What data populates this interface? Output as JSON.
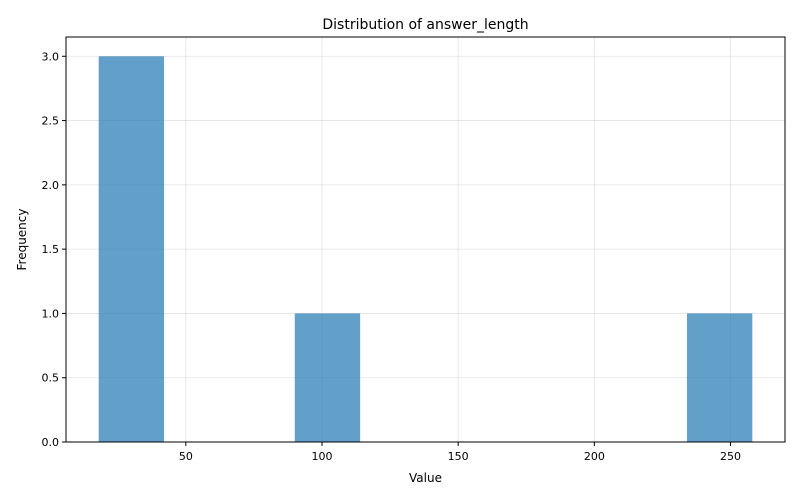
{
  "chart_data": {
    "type": "bar",
    "title": "Distribution of answer_length",
    "xlabel": "Value",
    "ylabel": "Frequency",
    "grid": true,
    "bar_color": "#1f77b4",
    "bar_opacity": 0.7,
    "xlim": [
      6,
      270
    ],
    "ylim": [
      0,
      3.15
    ],
    "xticks": [
      50,
      100,
      150,
      200,
      250
    ],
    "xtick_labels": [
      "50",
      "100",
      "150",
      "200",
      "250"
    ],
    "yticks": [
      0,
      0.5,
      1.0,
      1.5,
      2.0,
      2.5,
      3.0
    ],
    "ytick_labels": [
      "0.0",
      "0.5",
      "1.0",
      "1.5",
      "2.0",
      "2.5",
      "3.0"
    ],
    "bins": [
      {
        "x0": 18,
        "x1": 42,
        "count": 3
      },
      {
        "x0": 90,
        "x1": 114,
        "count": 1
      },
      {
        "x0": 234,
        "x1": 258,
        "count": 1
      }
    ]
  }
}
